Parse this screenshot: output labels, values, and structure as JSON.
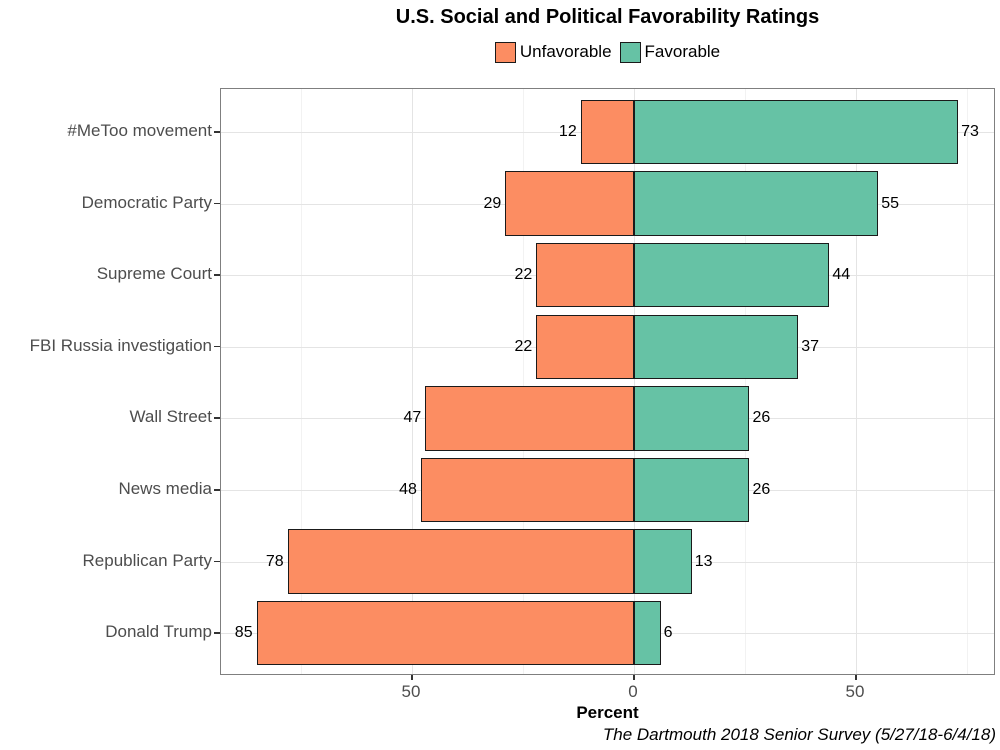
{
  "title": "U.S. Social and Political Favorability Ratings",
  "caption": "The Dartmouth 2018 Senior Survey (5/27/18-6/4/18)",
  "colors": {
    "unfavorable": "#FC8D62",
    "favorable": "#66C2A5",
    "bar_border": "#1a1a1a",
    "panel_border": "#7f7f7f",
    "grid_major": "#e4e4e4",
    "grid_minor": "#f2f2f2",
    "axis_text": "#4d4d4d",
    "tick_mark": "#333333"
  },
  "chart_data": {
    "type": "bar",
    "orientation": "horizontal-diverging",
    "title": "U.S. Social and Political Favorability Ratings",
    "xlabel": "Percent",
    "ylabel": "",
    "categories": [
      "#MeToo movement",
      "Democratic Party",
      "Supreme Court",
      "FBI Russia investigation",
      "Wall Street",
      "News media",
      "Republican Party",
      "Donald Trump"
    ],
    "series": [
      {
        "name": "Unfavorable",
        "color": "#FC8D62",
        "direction": "left",
        "values": [
          12,
          29,
          22,
          22,
          47,
          48,
          78,
          85
        ]
      },
      {
        "name": "Favorable",
        "color": "#66C2A5",
        "direction": "right",
        "values": [
          73,
          55,
          44,
          37,
          26,
          26,
          13,
          6
        ]
      }
    ],
    "value_labels_shown": true,
    "x_ticks": [
      -50,
      0,
      50
    ],
    "x_tick_labels": [
      "50",
      "0",
      "50"
    ],
    "x_minor_ticks": [
      -75,
      -25,
      25,
      75
    ],
    "xlim": [
      -93,
      81.5
    ],
    "grid": "major+minor",
    "legend_position": "top",
    "panel_background": "#ffffff"
  }
}
